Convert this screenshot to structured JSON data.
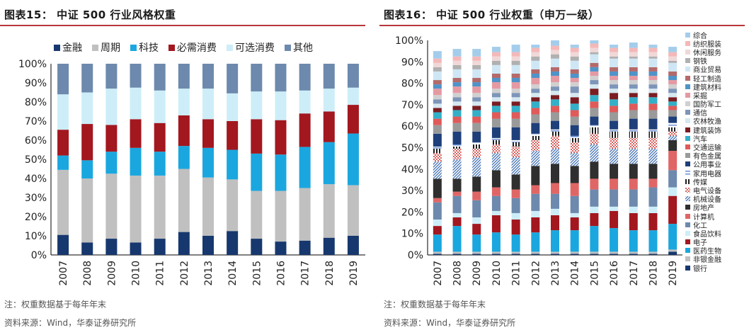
{
  "left": {
    "title": "图表15：  中证 500 行业风格权重",
    "note": "注：权重数据基于每年年末",
    "source": "资料来源：Wind，华泰证券研究所"
  },
  "right": {
    "title": "图表16：  中证 500 行业权重（申万一级）",
    "note": "注：权重数据基于每年年末",
    "source": "资料来源：Wind，华泰证券研究所"
  },
  "chart_data": [
    {
      "type": "bar",
      "stacked": true,
      "categories": [
        "2007",
        "2008",
        "2009",
        "2010",
        "2011",
        "2012",
        "2013",
        "2014",
        "2015",
        "2016",
        "2017",
        "2018",
        "2019"
      ],
      "ylim": [
        0,
        100
      ],
      "yticks": [
        "0%",
        "10%",
        "20%",
        "30%",
        "40%",
        "50%",
        "60%",
        "70%",
        "80%",
        "90%",
        "100%"
      ],
      "legend_position": "top",
      "series": [
        {
          "name": "金融",
          "color": "#17386e",
          "values": [
            10.5,
            6.5,
            8.5,
            6.5,
            8.5,
            12.0,
            10.0,
            12.5,
            8.5,
            7.0,
            7.5,
            9.0,
            10.0
          ]
        },
        {
          "name": "周期",
          "color": "#c0c0c0",
          "values": [
            34.0,
            33.5,
            34.0,
            35.0,
            33.0,
            33.0,
            30.5,
            27.0,
            25.0,
            26.5,
            27.5,
            28.0,
            26.5
          ]
        },
        {
          "name": "科技",
          "color": "#1aa7df",
          "values": [
            7.5,
            9.5,
            11.5,
            14.5,
            12.5,
            12.0,
            15.5,
            15.5,
            19.5,
            19.0,
            21.5,
            22.0,
            27.0
          ]
        },
        {
          "name": "必需消费",
          "color": "#a3171f",
          "values": [
            13.5,
            19.0,
            14.0,
            15.0,
            15.0,
            16.0,
            15.0,
            15.0,
            18.0,
            18.0,
            17.5,
            16.0,
            15.0
          ]
        },
        {
          "name": "可选消费",
          "color": "#cdeef8",
          "values": [
            18.5,
            16.5,
            19.0,
            16.5,
            17.0,
            14.0,
            16.0,
            14.5,
            14.5,
            15.0,
            12.0,
            12.0,
            9.0
          ]
        },
        {
          "name": "其他",
          "color": "#6d89ad",
          "values": [
            16.0,
            15.0,
            13.0,
            12.5,
            14.0,
            13.0,
            13.0,
            15.5,
            14.5,
            14.5,
            14.0,
            13.0,
            12.5
          ]
        }
      ]
    },
    {
      "type": "bar",
      "stacked": true,
      "categories": [
        "2007",
        "2008",
        "2009",
        "2010",
        "2011",
        "2012",
        "2013",
        "2014",
        "2015",
        "2016",
        "2017",
        "2018",
        "2019"
      ],
      "ylim": [
        0,
        100
      ],
      "yticks": [
        "0%",
        "10%",
        "20%",
        "30%",
        "40%",
        "50%",
        "60%",
        "70%",
        "80%",
        "90%",
        "100%"
      ],
      "legend_position": "right",
      "series": [
        {
          "name": "银行",
          "color": "#17386e",
          "pattern": "solid",
          "values": [
            0.5,
            0.5,
            0.5,
            0.5,
            0.5,
            0.5,
            0.5,
            0.5,
            0.5,
            0.5,
            0.5,
            0.5,
            1.5
          ]
        },
        {
          "name": "非银金融",
          "color": "#c0c0c0",
          "pattern": "solid",
          "values": [
            1,
            1,
            1,
            1,
            1,
            1,
            1,
            1,
            1,
            1,
            1,
            1,
            1
          ]
        },
        {
          "name": "医药生物",
          "color": "#1aa7df",
          "pattern": "solid",
          "values": [
            8,
            12,
            8,
            9,
            8,
            9,
            10,
            10,
            12,
            11,
            10,
            10,
            12
          ]
        },
        {
          "name": "电子",
          "color": "#a3171f",
          "pattern": "solid",
          "values": [
            4,
            4,
            5,
            8,
            7,
            7,
            7,
            6,
            6,
            8,
            8,
            8,
            13
          ]
        },
        {
          "name": "食品饮料",
          "color": "#cdeef8",
          "pattern": "solid",
          "values": [
            3,
            2,
            3,
            2,
            3,
            3,
            3,
            2,
            3,
            2,
            3,
            3,
            4
          ]
        },
        {
          "name": "化工",
          "color": "#6d89ad",
          "pattern": "solid",
          "values": [
            8,
            8,
            8,
            7,
            7,
            8,
            7,
            8,
            8,
            8,
            8,
            9,
            8
          ]
        },
        {
          "name": "计算机",
          "color": "#e06666",
          "pattern": "solid",
          "values": [
            2,
            2,
            4,
            4,
            4,
            4,
            5,
            6,
            5,
            5,
            5,
            4,
            9
          ]
        },
        {
          "name": "房地产",
          "color": "#2f2f2f",
          "pattern": "solid",
          "values": [
            9,
            6,
            7,
            8,
            7,
            9,
            9,
            8,
            8,
            7,
            7,
            7,
            5
          ]
        },
        {
          "name": "机械设备",
          "color": "#3f6fb2",
          "pattern": "diagonal",
          "values": [
            8,
            9,
            9,
            8,
            8,
            7,
            7,
            6,
            8,
            7,
            7,
            7,
            2
          ]
        },
        {
          "name": "电气设备",
          "color": "#c9302c",
          "pattern": "dots",
          "values": [
            4,
            5,
            4,
            4,
            5,
            5,
            6,
            5,
            5,
            5,
            5,
            5,
            2
          ]
        },
        {
          "name": "传媒",
          "color": "#1d1d1d",
          "pattern": "vertical",
          "values": [
            2,
            1,
            2,
            2,
            2,
            2,
            2,
            2,
            3,
            3,
            3,
            3,
            2
          ]
        },
        {
          "name": "家用电器",
          "color": "#6a8fd6",
          "pattern": "horizontal",
          "values": [
            1,
            1,
            1,
            1,
            1,
            1,
            1,
            1,
            1,
            1,
            1,
            1,
            2
          ]
        },
        {
          "name": "公用事业",
          "color": "#1e3f7a",
          "pattern": "solid",
          "values": [
            6,
            6,
            5,
            5,
            6,
            5,
            4,
            5,
            4,
            4,
            5,
            5,
            3
          ]
        },
        {
          "name": "有色金属",
          "color": "#9a9a9a",
          "pattern": "solid",
          "values": [
            4,
            4,
            4,
            4,
            4,
            4,
            4,
            4,
            4,
            4,
            4,
            4,
            3
          ]
        },
        {
          "name": "交通运输",
          "color": "#e05a5a",
          "pattern": "solid",
          "values": [
            3,
            3,
            3,
            3,
            3,
            3,
            3,
            3,
            3,
            3,
            3,
            3,
            2
          ]
        },
        {
          "name": "汽车",
          "color": "#33b0c8",
          "pattern": "solid",
          "values": [
            3,
            3,
            3,
            3,
            3,
            3,
            3,
            3,
            3,
            3,
            3,
            3,
            2
          ]
        },
        {
          "name": "建筑装饰",
          "color": "#7a1d22",
          "pattern": "solid",
          "values": [
            2,
            2,
            2,
            2,
            2,
            2,
            2,
            3,
            3,
            3,
            2,
            2,
            2
          ]
        },
        {
          "name": "农林牧渔",
          "color": "#d6e8f0",
          "pattern": "solid",
          "values": [
            2,
            2,
            2,
            2,
            2,
            2,
            2,
            2,
            2,
            2,
            2,
            2,
            2
          ]
        },
        {
          "name": "通信",
          "color": "#7d95b8",
          "pattern": "solid",
          "values": [
            2,
            2,
            2,
            2,
            2,
            2,
            2,
            3,
            2,
            2,
            2,
            2,
            2
          ]
        },
        {
          "name": "国防军工",
          "color": "#d0d0d0",
          "pattern": "solid",
          "values": [
            2,
            2,
            2,
            2,
            2,
            2,
            2,
            2,
            2,
            2,
            2,
            2,
            2
          ]
        },
        {
          "name": "采掘",
          "color": "#e59aa3",
          "pattern": "solid",
          "values": [
            3,
            3,
            3,
            3,
            3,
            3,
            3,
            2,
            2,
            2,
            2,
            2,
            2
          ]
        },
        {
          "name": "建筑材料",
          "color": "#4f93c9",
          "pattern": "solid",
          "values": [
            2,
            2,
            2,
            2,
            2,
            2,
            2,
            2,
            2,
            2,
            2,
            2,
            2
          ]
        },
        {
          "name": "轻工制造",
          "color": "#b46a6a",
          "pattern": "solid",
          "values": [
            2,
            2,
            2,
            2,
            2,
            2,
            2,
            2,
            2,
            2,
            2,
            2,
            2
          ]
        },
        {
          "name": "商业贸易",
          "color": "#cfe7f5",
          "pattern": "solid",
          "values": [
            4,
            4,
            4,
            4,
            4,
            4,
            4,
            4,
            4,
            4,
            4,
            4,
            4
          ]
        },
        {
          "name": "钢铁",
          "color": "#b0b0b0",
          "pattern": "solid",
          "values": [
            2,
            2,
            2,
            2,
            2,
            2,
            2,
            2,
            1,
            1,
            1,
            1,
            1
          ]
        },
        {
          "name": "休闲服务",
          "color": "#f0d8d8",
          "pattern": "solid",
          "values": [
            2,
            2,
            2,
            2,
            2,
            2,
            2,
            2,
            2,
            2,
            2,
            2,
            2
          ]
        },
        {
          "name": "纺织服装",
          "color": "#f4b8b8",
          "pattern": "solid",
          "values": [
            2,
            2,
            2,
            2,
            2,
            2,
            2,
            2,
            2,
            2,
            2,
            2,
            2
          ]
        },
        {
          "name": "综合",
          "color": "#a4cdeb",
          "pattern": "solid",
          "values": [
            3.5,
            3.5,
            3.5,
            2.5,
            3.5,
            1.5,
            2.5,
            1.5,
            1.5,
            1.5,
            2.5,
            1.5,
            2.5
          ]
        }
      ]
    }
  ]
}
